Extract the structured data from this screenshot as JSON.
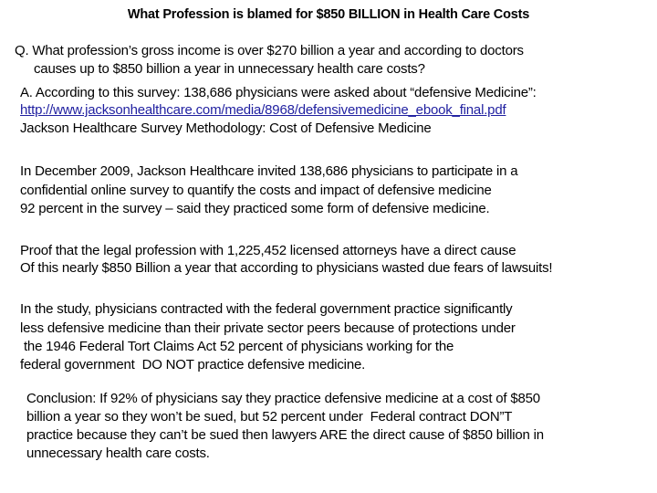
{
  "title": "What Profession is blamed for $850 BILLION  in Health Care Costs",
  "question": [
    "Q. What profession’s gross income is over $270 billion a year and according to doctors",
    "causes up to $850 billion a year in unnecessary health care costs?"
  ],
  "answer": {
    "intro": "A.   According to this survey: 138,686 physicians were asked about “defensive Medicine”:",
    "link": "http://www.jacksonhealthcare.com/media/8968/defensivemedicine_ebook_final.pdf",
    "source": "Jackson Healthcare Survey Methodology: Cost of Defensive Medicine"
  },
  "paragraph_december": [
    "In December 2009, Jackson Healthcare invited 138,686 physicians to participate in a",
    "confidential online survey to quantify the costs and impact of defensive medicine",
    "92 percent in the survey – said they practiced some form of defensive medicine."
  ],
  "paragraph_proof": [
    "Proof that the legal profession with 1,225,452 licensed attorneys have a direct cause",
    "Of this nearly $850 Billion a year that according to physicians wasted due fears of lawsuits!"
  ],
  "paragraph_study": [
    "In the study, physicians contracted with the federal government practice significantly",
    "less defensive medicine than their private sector peers because of protections under",
    " the 1946 Federal Tort Claims Act 52 percent of physicians working for the",
    "federal government  DO NOT practice defensive medicine."
  ],
  "conclusion": [
    "Conclusion: If 92% of physicians say they practice defensive medicine at a cost of $850",
    "billion a year so they won’t be sued, but 52 percent under  Federal contract DON”T",
    "practice because they can’t be sued then lawyers ARE the direct cause of $850 billion in",
    "unnecessary health care costs."
  ],
  "colors": {
    "link": "#1f1fa0",
    "text": "#000000",
    "background": "#ffffff"
  }
}
